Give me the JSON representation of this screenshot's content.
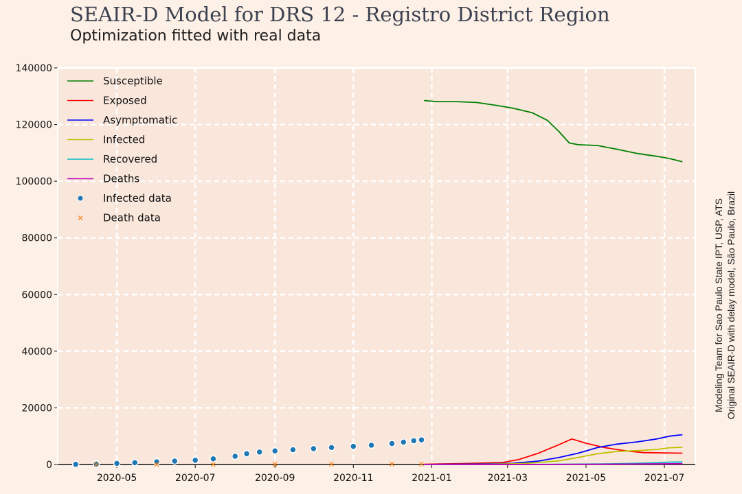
{
  "title": "SEAIR-D Model for DRS 12 - Registro District Region",
  "subtitle": "Optimization fitted with real data",
  "side_note": {
    "line1": "Modeling Team for Sao Paulo State IPT, USP, ATS",
    "line2": "Original SEAIR-D with delay model, São Paulo, Brazil"
  },
  "chart_data": {
    "type": "line",
    "x_type": "date",
    "xlim": [
      "2020-03-16",
      "2021-07-25"
    ],
    "ylim": [
      0,
      140000
    ],
    "grid": true,
    "legend_position": "top-left",
    "x_ticks": [
      {
        "date": "2020-05-01",
        "label": "2020-05"
      },
      {
        "date": "2020-07-01",
        "label": "2020-07"
      },
      {
        "date": "2020-09-01",
        "label": "2020-09"
      },
      {
        "date": "2020-11-01",
        "label": "2020-11"
      },
      {
        "date": "2021-01-01",
        "label": "2021-01"
      },
      {
        "date": "2021-03-01",
        "label": "2021-03"
      },
      {
        "date": "2021-05-01",
        "label": "2021-05"
      },
      {
        "date": "2021-07-01",
        "label": "2021-07"
      }
    ],
    "y_ticks": [
      0,
      20000,
      40000,
      60000,
      80000,
      100000,
      120000,
      140000
    ],
    "series": [
      {
        "name": "Susceptible",
        "kind": "line",
        "color": "#008000",
        "points": [
          [
            "2020-12-26",
            128500
          ],
          [
            "2021-01-05",
            128100
          ],
          [
            "2021-01-20",
            128100
          ],
          [
            "2021-02-05",
            127800
          ],
          [
            "2021-02-20",
            126800
          ],
          [
            "2021-03-05",
            125800
          ],
          [
            "2021-03-20",
            124200
          ],
          [
            "2021-04-01",
            121500
          ],
          [
            "2021-04-10",
            117500
          ],
          [
            "2021-04-18",
            113500
          ],
          [
            "2021-04-25",
            112900
          ],
          [
            "2021-05-10",
            112600
          ],
          [
            "2021-05-25",
            111300
          ],
          [
            "2021-06-10",
            109800
          ],
          [
            "2021-06-25",
            108800
          ],
          [
            "2021-07-05",
            108000
          ],
          [
            "2021-07-15",
            106900
          ]
        ]
      },
      {
        "name": "Exposed",
        "kind": "line",
        "color": "#ff0000",
        "points": [
          [
            "2020-12-26",
            100
          ],
          [
            "2021-01-20",
            300
          ],
          [
            "2021-02-10",
            500
          ],
          [
            "2021-02-25",
            700
          ],
          [
            "2021-03-10",
            1800
          ],
          [
            "2021-03-25",
            4000
          ],
          [
            "2021-04-10",
            7000
          ],
          [
            "2021-04-20",
            9000
          ],
          [
            "2021-05-01",
            7500
          ],
          [
            "2021-05-15",
            6000
          ],
          [
            "2021-06-01",
            4800
          ],
          [
            "2021-06-15",
            4200
          ],
          [
            "2021-07-01",
            4100
          ],
          [
            "2021-07-15",
            4000
          ]
        ]
      },
      {
        "name": "Asymptomatic",
        "kind": "line",
        "color": "#0000ff",
        "points": [
          [
            "2020-12-26",
            0
          ],
          [
            "2021-02-10",
            200
          ],
          [
            "2021-03-05",
            400
          ],
          [
            "2021-03-25",
            1200
          ],
          [
            "2021-04-10",
            2500
          ],
          [
            "2021-04-25",
            4000
          ],
          [
            "2021-05-10",
            6000
          ],
          [
            "2021-05-25",
            7200
          ],
          [
            "2021-06-10",
            8000
          ],
          [
            "2021-06-25",
            9000
          ],
          [
            "2021-07-05",
            10000
          ],
          [
            "2021-07-15",
            10500
          ]
        ]
      },
      {
        "name": "Infected",
        "kind": "line",
        "color": "#bfbf00",
        "points": [
          [
            "2020-12-26",
            0
          ],
          [
            "2021-02-10",
            100
          ],
          [
            "2021-03-10",
            300
          ],
          [
            "2021-03-25",
            700
          ],
          [
            "2021-04-10",
            1300
          ],
          [
            "2021-04-25",
            2500
          ],
          [
            "2021-05-10",
            3800
          ],
          [
            "2021-05-25",
            4600
          ],
          [
            "2021-06-10",
            4900
          ],
          [
            "2021-06-25",
            5300
          ],
          [
            "2021-07-05",
            5900
          ],
          [
            "2021-07-15",
            6100
          ]
        ]
      },
      {
        "name": "Recovered",
        "kind": "line",
        "color": "#00bfbf",
        "points": [
          [
            "2020-12-26",
            0
          ],
          [
            "2021-04-01",
            50
          ],
          [
            "2021-05-15",
            200
          ],
          [
            "2021-06-10",
            400
          ],
          [
            "2021-06-25",
            600
          ],
          [
            "2021-07-05",
            850
          ],
          [
            "2021-07-15",
            900
          ]
        ]
      },
      {
        "name": "Deaths",
        "kind": "line",
        "color": "#bf00bf",
        "points": [
          [
            "2020-12-26",
            0
          ],
          [
            "2021-04-01",
            30
          ],
          [
            "2021-06-01",
            150
          ],
          [
            "2021-07-15",
            300
          ]
        ]
      },
      {
        "name": "Infected data",
        "kind": "scatter",
        "color": "#1f77b4",
        "points": [
          [
            "2020-03-30",
            50
          ],
          [
            "2020-04-15",
            150
          ],
          [
            "2020-05-01",
            400
          ],
          [
            "2020-05-15",
            650
          ],
          [
            "2020-06-01",
            950
          ],
          [
            "2020-06-15",
            1200
          ],
          [
            "2020-07-01",
            1500
          ],
          [
            "2020-07-15",
            2000
          ],
          [
            "2020-08-01",
            2900
          ],
          [
            "2020-08-10",
            3800
          ],
          [
            "2020-08-20",
            4400
          ],
          [
            "2020-09-01",
            4800
          ],
          [
            "2020-09-15",
            5200
          ],
          [
            "2020-10-01",
            5600
          ],
          [
            "2020-10-15",
            6000
          ],
          [
            "2020-11-01",
            6400
          ],
          [
            "2020-11-15",
            6800
          ],
          [
            "2020-12-01",
            7400
          ],
          [
            "2020-12-10",
            7900
          ],
          [
            "2020-12-18",
            8400
          ],
          [
            "2020-12-24",
            8700
          ]
        ]
      },
      {
        "name": "Death data",
        "kind": "cross",
        "color": "#ff7f0e",
        "points": [
          [
            "2020-04-15",
            5
          ],
          [
            "2020-06-01",
            20
          ],
          [
            "2020-07-15",
            40
          ],
          [
            "2020-09-01",
            70
          ],
          [
            "2020-10-15",
            100
          ],
          [
            "2020-12-01",
            130
          ],
          [
            "2020-12-24",
            150
          ]
        ]
      }
    ]
  }
}
